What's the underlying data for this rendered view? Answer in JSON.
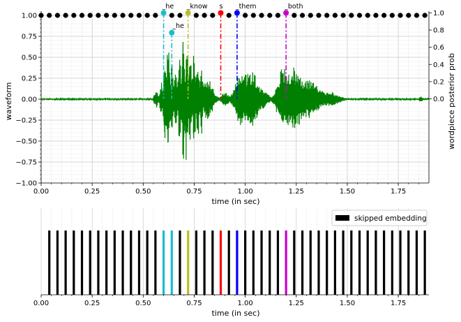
{
  "chart_data": [
    {
      "type": "line",
      "xlabel": "time (in sec)",
      "ylabel": "waveform",
      "ylabel_right": "wordpiece posterior prob",
      "xlim": [
        0,
        1.9
      ],
      "ylim": [
        -1.0,
        1.05
      ],
      "ylim_right": [
        -0.98,
        1.02
      ],
      "x_ticks": [
        "0.00",
        "0.25",
        "0.50",
        "0.75",
        "1.00",
        "1.25",
        "1.50",
        "1.75"
      ],
      "y_ticks": [
        "−1.00",
        "−0.75",
        "−0.50",
        "−0.25",
        "0.00",
        "0.25",
        "0.50",
        "0.75",
        "1.00"
      ],
      "y_ticks_right": [
        "0.0",
        "0.2",
        "0.4",
        "0.6",
        "0.8",
        "1.0"
      ],
      "grid": true,
      "waveform_color": "#008000",
      "frame_points": {
        "times_start": 0.0,
        "step": 0.04,
        "count": 48,
        "y": 1.0,
        "color": "#000000"
      },
      "wordpieces": [
        {
          "label": "_he",
          "time": 0.6,
          "prob": 1.0,
          "color": "#17becf"
        },
        {
          "label": "_he",
          "time": 0.64,
          "prob": 0.77,
          "color": "#17becf"
        },
        {
          "label": "_know",
          "time": 0.72,
          "prob": 1.0,
          "color": "#bcbd22"
        },
        {
          "label": "s",
          "time": 0.88,
          "prob": 1.0,
          "color": "#ff0000"
        },
        {
          "label": "_them",
          "time": 0.96,
          "prob": 1.0,
          "color": "#0000ff"
        },
        {
          "label": "_both",
          "time": 1.2,
          "prob": 1.0,
          "color": "#cc00cc"
        }
      ]
    },
    {
      "type": "bar",
      "xlabel": "time (in sec)",
      "xlim": [
        0,
        1.9
      ],
      "x_ticks": [
        "0.00",
        "0.25",
        "0.50",
        "0.75",
        "1.00",
        "1.25",
        "1.50",
        "1.75"
      ],
      "legend": {
        "label": "skipped embedding",
        "color": "#000000",
        "position": "top-right"
      },
      "bars": {
        "times_start": 0.0,
        "step": 0.04,
        "count": 48,
        "default_color": "#000000"
      },
      "highlighted": [
        {
          "time": 0.6,
          "color": "#17becf"
        },
        {
          "time": 0.64,
          "color": "#17becf"
        },
        {
          "time": 0.72,
          "color": "#bcbd22"
        },
        {
          "time": 0.88,
          "color": "#ff0000"
        },
        {
          "time": 0.96,
          "color": "#0000ff"
        },
        {
          "time": 1.2,
          "color": "#cc00cc"
        }
      ]
    }
  ]
}
